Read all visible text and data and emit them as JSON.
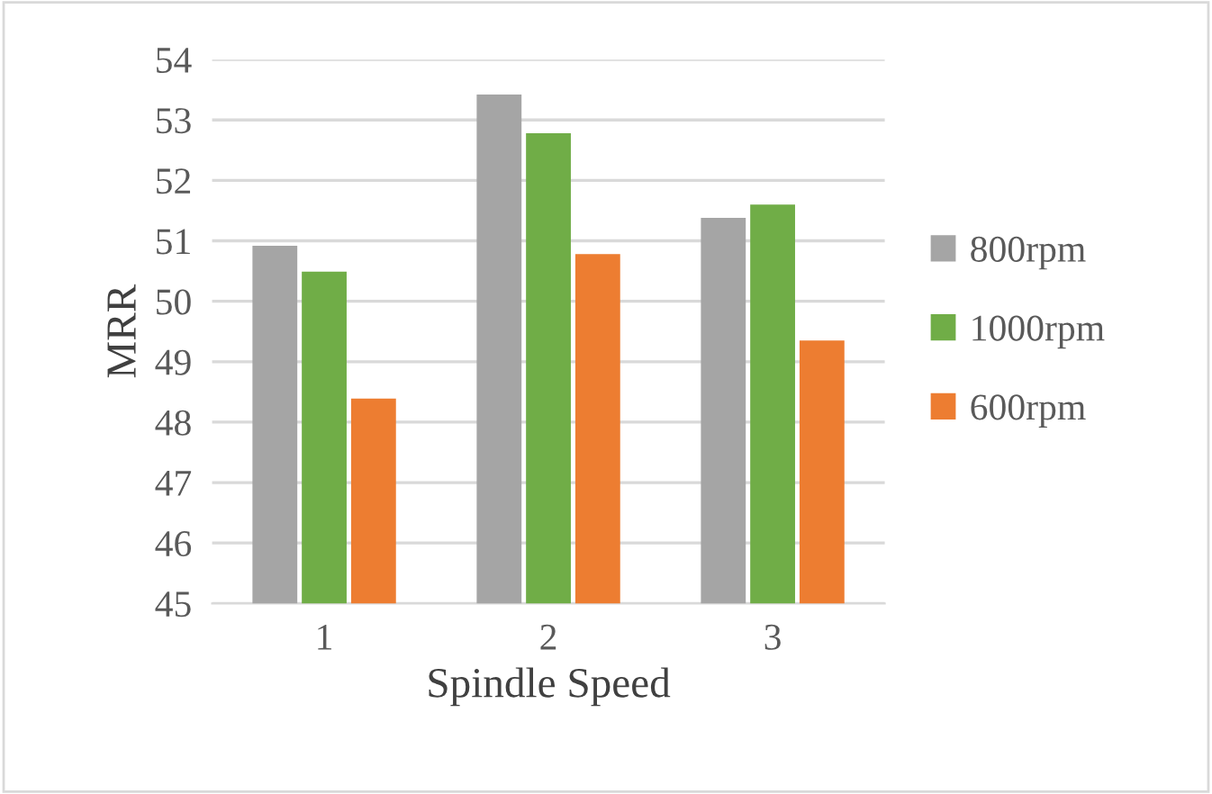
{
  "chart_data": {
    "type": "bar",
    "xlabel": "Spindle Speed",
    "ylabel": "MRR",
    "categories": [
      "1",
      "2",
      "3"
    ],
    "series": [
      {
        "name": "800rpm",
        "color": "#a5a5a5",
        "values": [
          50.92,
          53.42,
          51.38
        ]
      },
      {
        "name": "1000rpm",
        "color": "#70ad47",
        "values": [
          50.49,
          52.78,
          51.6
        ]
      },
      {
        "name": "600rpm",
        "color": "#ed7d31",
        "values": [
          48.39,
          50.78,
          49.35
        ]
      }
    ],
    "ylim": [
      45,
      54
    ],
    "yticks": [
      45,
      46,
      47,
      48,
      49,
      50,
      51,
      52,
      53,
      54
    ],
    "grid": "y",
    "legend": "right"
  }
}
